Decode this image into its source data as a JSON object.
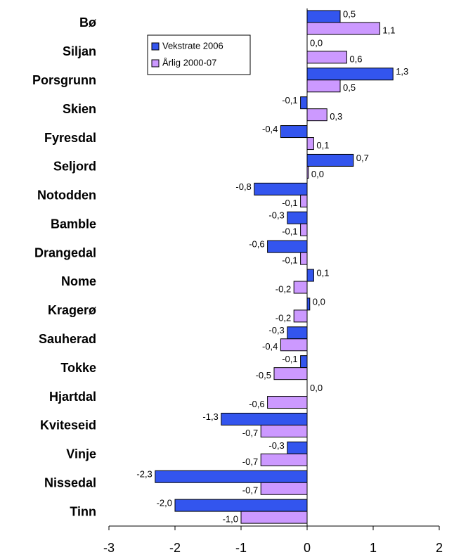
{
  "chart_data": {
    "type": "hbar",
    "categories": [
      "Bø",
      "Siljan",
      "Porsgrunn",
      "Skien",
      "Fyresdal",
      "Seljord",
      "Notodden",
      "Bamble",
      "Drangedal",
      "Nome",
      "Kragerø",
      "Sauherad",
      "Tokke",
      "Hjartdal",
      "Kviteseid",
      "Vinje",
      "Nissedal",
      "Tinn"
    ],
    "series": [
      {
        "name": "Vekstrate 2006",
        "color": "#3355ee",
        "values": [
          0.5,
          0.0,
          1.3,
          -0.1,
          -0.4,
          0.7,
          -0.8,
          -0.3,
          -0.6,
          0.1,
          0.04,
          -0.3,
          -0.1,
          0.0,
          -1.3,
          -0.3,
          -2.3,
          -2.0
        ],
        "value_labels": [
          "0,5",
          "0,0",
          "1,3",
          "-0,1",
          "-0,4",
          "0,7",
          "-0,8",
          "-0,3",
          "-0,6",
          "0,1",
          "0,0",
          "-0,3",
          "-0,1",
          "0,0",
          "-1,3",
          "-0,3",
          "-2,3",
          "-2,0"
        ]
      },
      {
        "name": "Årlig 2000-07",
        "color": "#cc99ff",
        "values": [
          1.1,
          0.6,
          0.5,
          0.3,
          0.1,
          0.02,
          -0.1,
          -0.1,
          -0.1,
          -0.2,
          -0.2,
          -0.4,
          -0.5,
          -0.6,
          -0.7,
          -0.7,
          -0.7,
          -1.0
        ],
        "value_labels": [
          "1,1",
          "0,6",
          "0,5",
          "0,3",
          "0,1",
          "0,0",
          "-0,1",
          "-0,1",
          "-0,1",
          "-0,2",
          "-0,2",
          "-0,4",
          "-0,5",
          "-0,6",
          "-0,7",
          "-0,7",
          "-0,7",
          "-1,0"
        ]
      }
    ],
    "xlim": [
      -3,
      2
    ],
    "xticks": [
      -3,
      -2,
      -1,
      0,
      1,
      2
    ],
    "legend": "top-left"
  }
}
